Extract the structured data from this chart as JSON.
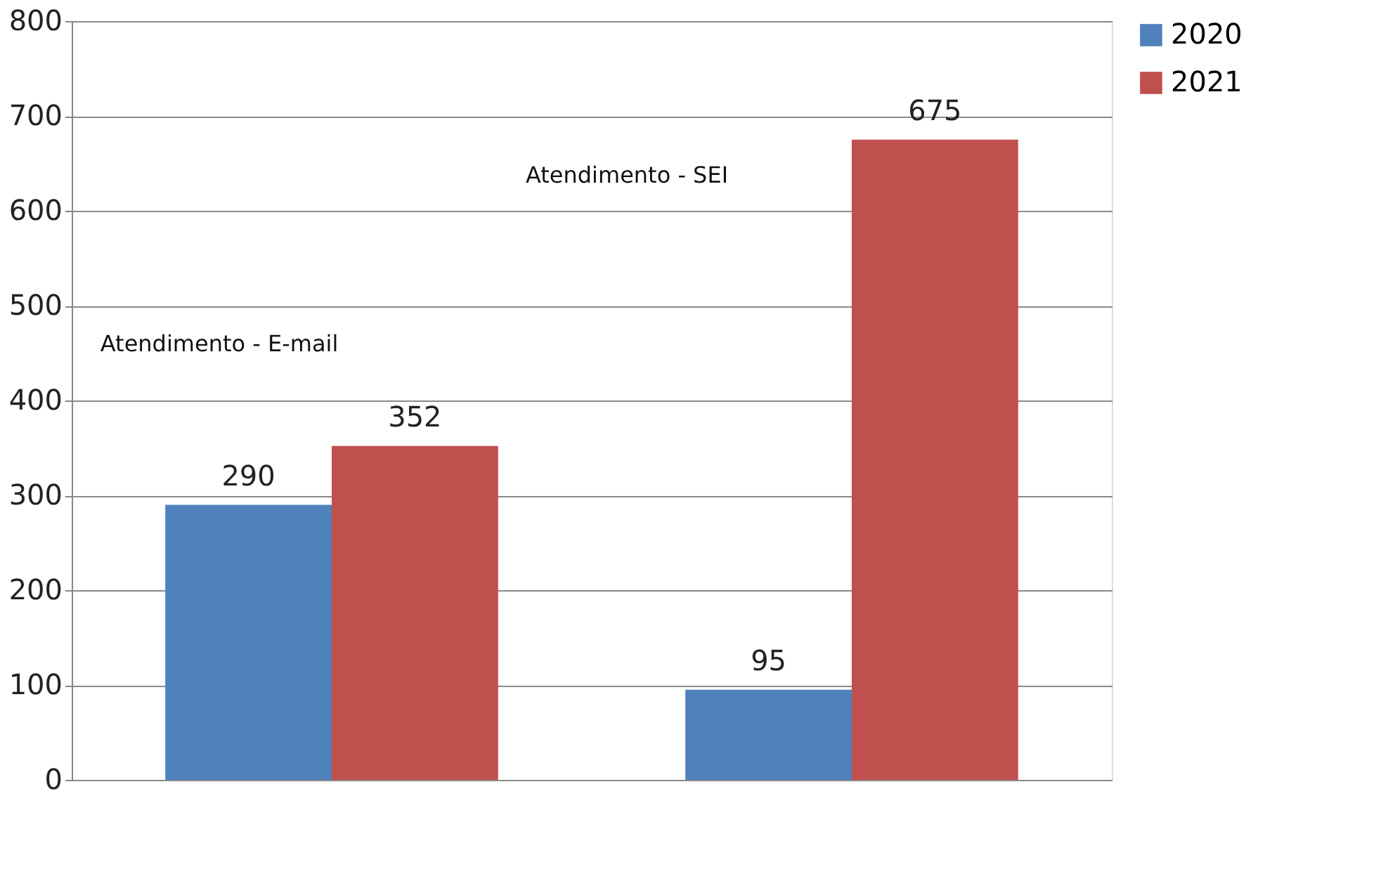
{
  "chart_data": {
    "type": "bar",
    "categories": [
      null,
      null
    ],
    "series": [
      {
        "name": "2020",
        "color": "#4f81bd",
        "values": [
          290,
          95
        ]
      },
      {
        "name": "2021",
        "color": "#c0504d",
        "values": [
          352,
          675
        ]
      }
    ],
    "ylim": [
      0,
      800
    ],
    "yticks": [
      0,
      100,
      200,
      300,
      400,
      500,
      600,
      700,
      800
    ],
    "grid": "y",
    "legend": "right",
    "data_labels": true,
    "annotations": [
      "Atendimento - E-mail",
      "Atendimento - SEI"
    ]
  }
}
